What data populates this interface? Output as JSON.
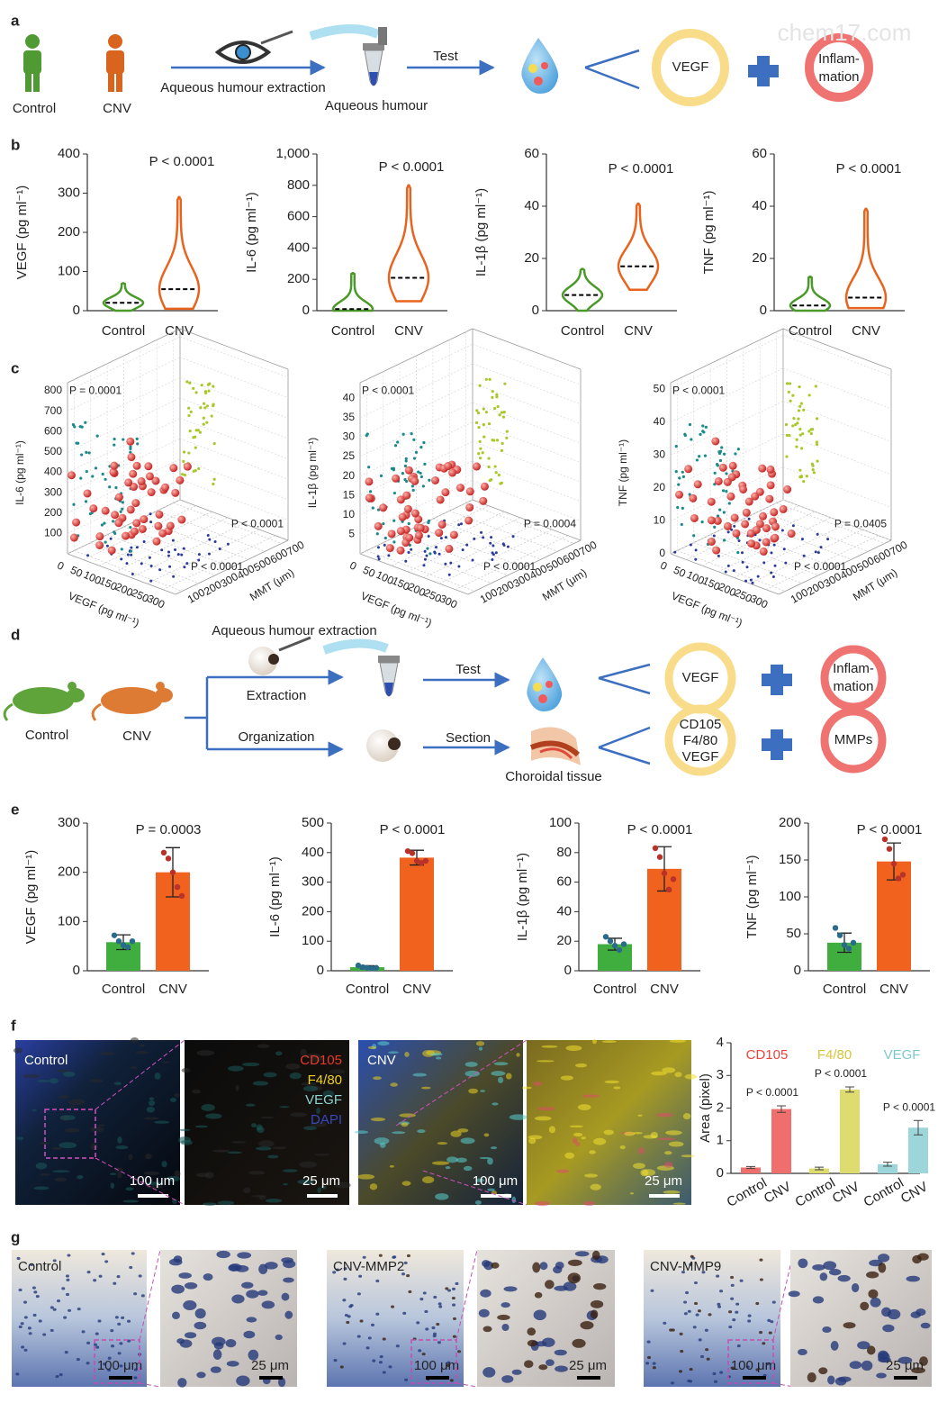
{
  "watermark": "chem17.com",
  "panel_labels": {
    "a": "a",
    "b": "b",
    "c": "c",
    "d": "d",
    "e": "e",
    "f": "f",
    "g": "g"
  },
  "panel_a": {
    "control": "Control",
    "cnv": "CNV",
    "extraction": "Aqueous humour extraction",
    "sample": "Aqueous humour",
    "test": "Test",
    "vegf": "VEGF",
    "inflammation": [
      "Inflam-",
      "mation"
    ]
  },
  "panel_b": [
    {
      "type": "violin",
      "ylabel": "VEGF (pg ml⁻¹)",
      "categories": [
        "Control",
        "CNV"
      ],
      "colors": [
        "#4a9a2a",
        "#e8641e"
      ],
      "min": [
        0,
        5
      ],
      "median": [
        20,
        55
      ],
      "max": [
        70,
        290
      ],
      "ylim": [
        0,
        400
      ],
      "yticks": [
        0,
        100,
        200,
        300,
        400
      ],
      "p_value": "P < 0.0001"
    },
    {
      "type": "violin",
      "ylabel": "IL-6 (pg ml⁻¹)",
      "categories": [
        "Control",
        "CNV"
      ],
      "colors": [
        "#4a9a2a",
        "#e8641e"
      ],
      "min": [
        0,
        60
      ],
      "median": [
        10,
        210
      ],
      "max": [
        240,
        800
      ],
      "ylim": [
        0,
        1000
      ],
      "yticks": [
        0,
        200,
        400,
        600,
        800,
        {
          "value": 1000,
          "label": "1,000"
        }
      ],
      "p_value": "P < 0.0001"
    },
    {
      "type": "violin",
      "ylabel": "IL-1β (pg ml⁻¹)",
      "categories": [
        "Control",
        "CNV"
      ],
      "colors": [
        "#4a9a2a",
        "#e8641e"
      ],
      "min": [
        0,
        8
      ],
      "median": [
        6,
        17
      ],
      "max": [
        16,
        41
      ],
      "ylim": [
        0,
        60
      ],
      "yticks": [
        0,
        20,
        40,
        60
      ],
      "p_value": "P < 0.0001"
    },
    {
      "type": "violin",
      "ylabel": "TNF (pg ml⁻¹)",
      "categories": [
        "Control",
        "CNV"
      ],
      "colors": [
        "#4a9a2a",
        "#e8641e"
      ],
      "min": [
        0,
        1
      ],
      "median": [
        2,
        5
      ],
      "max": [
        13,
        39
      ],
      "ylim": [
        0,
        60
      ],
      "yticks": [
        0,
        20,
        40,
        60
      ],
      "p_value": "P < 0.0001"
    }
  ],
  "panel_c": [
    {
      "type": "scatter3d",
      "zlabel": "IL-6 (pg ml⁻¹)",
      "xlabel": "VEGF (pg ml⁻¹)",
      "ylabel": "MMT (μm)",
      "xlim": [
        0,
        340
      ],
      "xticks": [
        0,
        50,
        100,
        150,
        200,
        250,
        300
      ],
      "ylim": [
        60,
        740
      ],
      "yticks": [
        100,
        200,
        300,
        400,
        500,
        600,
        700
      ],
      "zlim": [
        0,
        840
      ],
      "zticks": [
        100,
        200,
        300,
        400,
        500,
        600,
        700,
        800
      ],
      "p_values": [
        "P = 0.0001",
        "P < 0.0001",
        "P < 0.0001"
      ]
    },
    {
      "type": "scatter3d",
      "zlabel": "IL-1β (pg ml⁻¹)",
      "xlabel": "VEGF (pg ml⁻¹)",
      "ylabel": "MMT (μm)",
      "xlim": [
        0,
        340
      ],
      "xticks": [
        0,
        50,
        100,
        150,
        200,
        250,
        300
      ],
      "ylim": [
        60,
        740
      ],
      "yticks": [
        100,
        200,
        300,
        400,
        500,
        600,
        700
      ],
      "zlim": [
        0,
        44
      ],
      "zticks": [
        5,
        10,
        15,
        20,
        25,
        30,
        35,
        40
      ],
      "p_values": [
        "P < 0.0001",
        "P = 0.0004",
        "P < 0.0001"
      ]
    },
    {
      "type": "scatter3d",
      "zlabel": "TNF (pg ml⁻¹)",
      "xlabel": "VEGF (pg ml⁻¹)",
      "ylabel": "MMT (μm)",
      "xlim": [
        0,
        340
      ],
      "xticks": [
        0,
        50,
        100,
        150,
        200,
        250,
        300
      ],
      "ylim": [
        60,
        740
      ],
      "yticks": [
        100,
        200,
        300,
        400,
        500,
        600,
        700
      ],
      "zlim": [
        0,
        52
      ],
      "zticks": [
        0,
        10,
        20,
        30,
        40,
        50
      ],
      "p_values": [
        "P < 0.0001",
        "P = 0.0405",
        "P < 0.0001"
      ]
    }
  ],
  "panel_d": {
    "extraction_title": "Aqueous humour extraction",
    "control": "Control",
    "cnv": "CNV",
    "extraction": "Extraction",
    "organization": "Organization",
    "test": "Test",
    "section": "Section",
    "tissue": "Choroidal tissue",
    "vegf": "VEGF",
    "inflammation": [
      "Inflam-",
      "mation"
    ],
    "markers": [
      "CD105",
      "F4/80",
      "VEGF"
    ],
    "mmps": "MMPs"
  },
  "panel_e": [
    {
      "type": "bar",
      "ylabel": "VEGF (pg ml⁻¹)",
      "categories": [
        "Control",
        "CNV"
      ],
      "colors": [
        "#3fae3f",
        "#f0621e"
      ],
      "values": [
        58,
        200
      ],
      "errors": [
        15,
        50
      ],
      "points": [
        [
          72,
          60,
          52,
          48,
          60
        ],
        [
          240,
          228,
          200,
          170,
          152
        ]
      ],
      "ylim": [
        0,
        300
      ],
      "yticks": [
        0,
        100,
        200,
        300
      ],
      "p_value": "P = 0.0003"
    },
    {
      "type": "bar",
      "ylabel": "IL-6 (pg ml⁻¹)",
      "categories": [
        "Control",
        "CNV"
      ],
      "colors": [
        "#3fae3f",
        "#f0621e"
      ],
      "values": [
        12,
        383
      ],
      "errors": [
        5,
        25
      ],
      "points": [
        [
          18,
          12,
          10,
          8,
          10
        ],
        [
          405,
          398,
          372,
          365,
          372
        ]
      ],
      "ylim": [
        0,
        500
      ],
      "yticks": [
        0,
        100,
        200,
        300,
        400,
        500
      ],
      "p_value": "P < 0.0001"
    },
    {
      "type": "bar",
      "ylabel": "IL-1β (pg ml⁻¹)",
      "categories": [
        "Control",
        "CNV"
      ],
      "colors": [
        "#3fae3f",
        "#f0621e"
      ],
      "values": [
        18,
        69
      ],
      "errors": [
        4,
        15
      ],
      "points": [
        [
          23,
          20,
          17,
          14,
          18
        ],
        [
          83,
          77,
          66,
          55,
          62
        ]
      ],
      "ylim": [
        0,
        100
      ],
      "yticks": [
        0,
        20,
        40,
        60,
        80,
        100
      ],
      "p_value": "P < 0.0001"
    },
    {
      "type": "bar",
      "ylabel": "TNF (pg ml⁻¹)",
      "categories": [
        "Control",
        "CNV"
      ],
      "colors": [
        "#3fae3f",
        "#f0621e"
      ],
      "values": [
        38,
        148
      ],
      "errors": [
        13,
        25
      ],
      "points": [
        [
          58,
          48,
          35,
          30,
          38
        ],
        [
          178,
          165,
          145,
          125,
          130
        ]
      ],
      "ylim": [
        0,
        200
      ],
      "yticks": [
        0,
        50,
        100,
        150,
        200
      ],
      "p_value": "P < 0.0001"
    }
  ],
  "panel_f": {
    "images": [
      {
        "label": "Control",
        "scale": "100 μm"
      },
      {
        "channels": [
          "CD105",
          "F4/80",
          "VEGF",
          "DAPI"
        ],
        "channel_colors": [
          "#e83a2a",
          "#f1d21a",
          "#8fd3d1",
          "#3848b8"
        ],
        "scale": "25 μm"
      },
      {
        "label": "CNV",
        "scale": "100 μm"
      },
      {
        "scale": "25 μm"
      }
    ],
    "chart": {
      "type": "bar",
      "ylabel": "Area (pixel)",
      "categories": [
        "Control",
        "CNV",
        "Control",
        "CNV",
        "Control",
        "CNV"
      ],
      "groups": [
        "CD105",
        "F4/80",
        "VEGF"
      ],
      "colors": [
        "#ef6f6c",
        "#dedc6e",
        "#9dd6da"
      ],
      "label_colors": [
        "#e8453c",
        "#d8c43a",
        "#7cc8cc"
      ],
      "values": [
        0.18,
        1.97,
        0.15,
        2.57,
        0.28,
        1.4
      ],
      "errors": [
        0.03,
        0.1,
        0.04,
        0.08,
        0.06,
        0.22
      ],
      "ylim": [
        0,
        4
      ],
      "yticks": [
        0,
        1,
        2,
        3,
        4
      ],
      "p_values": [
        "P < 0.0001",
        "P < 0.0001",
        "P < 0.0001"
      ]
    }
  },
  "panel_g": {
    "images": [
      {
        "label": "Control",
        "scale": "100 μm"
      },
      {
        "scale": "25 μm"
      },
      {
        "label": "CNV-MMP2",
        "scale": "100 μm"
      },
      {
        "scale": "25 μm"
      },
      {
        "label": "CNV-MMP9",
        "scale": "100 μm"
      },
      {
        "scale": "25 μm"
      }
    ]
  }
}
